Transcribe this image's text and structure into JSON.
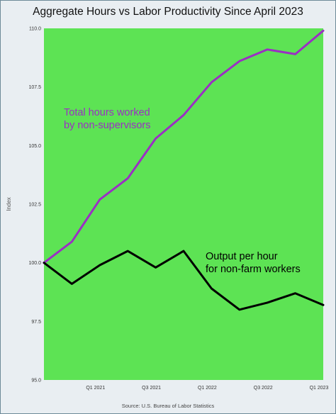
{
  "chart_data": {
    "type": "line",
    "title": "Aggregate Hours vs Labor Productivity Since April 2023",
    "xlabel": "",
    "ylabel": "Index",
    "ylim": [
      95.0,
      110.0
    ],
    "yticks": [
      "95.0",
      "97.5",
      "100.0",
      "102.5",
      "105.0",
      "107.5",
      "110.0"
    ],
    "x_tick_labels": [
      "Q1 2021",
      "Q3 2021",
      "Q1 2022",
      "Q3 2022",
      "Q1 2023"
    ],
    "grid": false,
    "background_color": "#5de354",
    "series": [
      {
        "name": "Total hours worked by non-supervisors",
        "color": "#9b2fc4",
        "values": [
          100.0,
          100.9,
          102.7,
          103.6,
          105.3,
          106.3,
          107.7,
          108.6,
          109.1,
          108.9,
          109.9
        ]
      },
      {
        "name": "Output per hour for non-farm workers",
        "color": "#000000",
        "values": [
          100.0,
          99.1,
          99.9,
          100.5,
          99.8,
          100.5,
          98.9,
          98.0,
          98.3,
          98.7,
          98.2
        ]
      }
    ],
    "annotations": [
      {
        "lines": [
          "Total hours worked",
          "by non-supervisors"
        ],
        "color": "#9b2fc4"
      },
      {
        "lines": [
          "Output per hour",
          "for non-farm workers"
        ],
        "color": "#000000"
      }
    ],
    "source": "Source: U.S. Bureau of Labor Statistics"
  }
}
